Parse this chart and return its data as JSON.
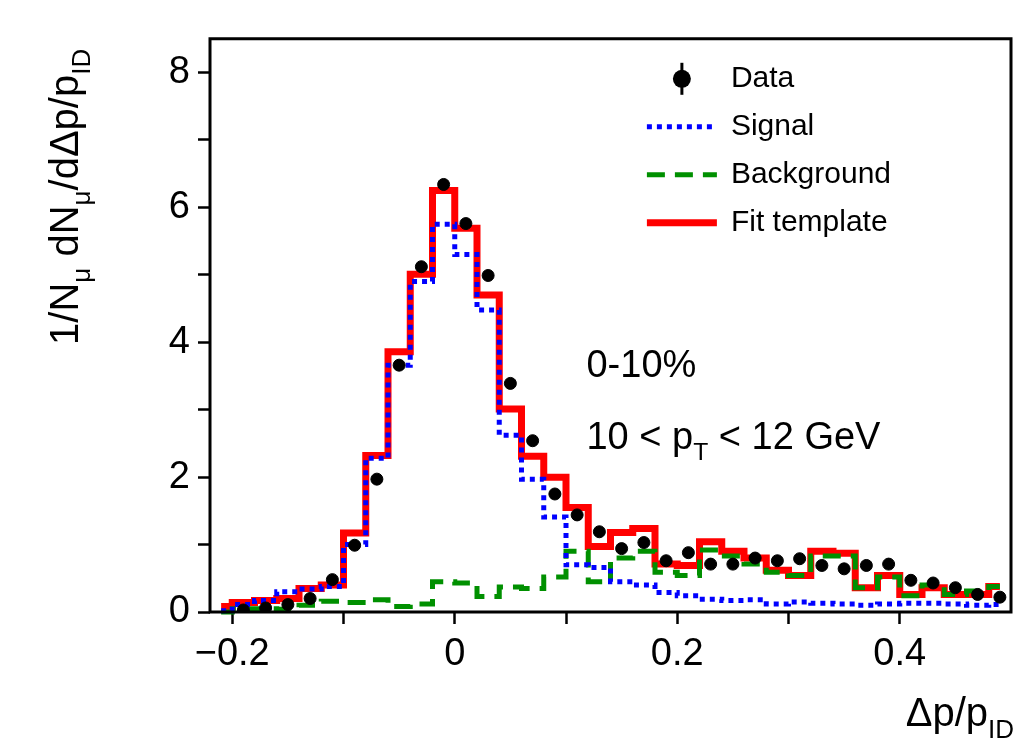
{
  "chart_data": {
    "type": "step",
    "xlabel": "Δp/p$_{ID}$",
    "ylabel": "1/N$_{μ}$ dN$_{μ}$/dΔp/p$_{ID}$",
    "annotations": [
      "0-10%",
      "10 < p$_{T}$ < 12 GeV"
    ],
    "x": [
      -0.21,
      -0.19,
      -0.17,
      -0.15,
      -0.13,
      -0.11,
      -0.09,
      -0.07,
      -0.05,
      -0.03,
      -0.01,
      0.01,
      0.03,
      0.05,
      0.07,
      0.09,
      0.11,
      0.13,
      0.15,
      0.17,
      0.19,
      0.21,
      0.23,
      0.25,
      0.27,
      0.29,
      0.31,
      0.33,
      0.35,
      0.37,
      0.39,
      0.41,
      0.43,
      0.45,
      0.47,
      0.49
    ],
    "series": [
      {
        "name": "Data",
        "type": "scatter",
        "marker": "circle",
        "color": "#000000",
        "values": [
          null,
          0.03,
          0.06,
          0.11,
          0.2,
          0.48,
          0.99,
          1.97,
          3.66,
          5.12,
          6.34,
          5.76,
          4.99,
          3.39,
          2.54,
          1.75,
          1.44,
          1.19,
          0.94,
          1.03,
          0.76,
          0.88,
          0.71,
          0.71,
          0.8,
          0.76,
          0.79,
          0.69,
          0.64,
          0.69,
          0.71,
          0.47,
          0.43,
          0.36,
          0.26,
          0.22
        ]
      },
      {
        "name": "Signal",
        "line_style": "dotted",
        "color": "#0000ff",
        "values": [
          0.02,
          0.11,
          0.17,
          0.3,
          0.34,
          0.38,
          1.0,
          2.28,
          3.66,
          4.9,
          5.75,
          5.3,
          4.48,
          2.62,
          1.97,
          1.41,
          0.7,
          0.66,
          0.45,
          0.4,
          0.29,
          0.24,
          0.19,
          0.17,
          0.18,
          0.12,
          0.15,
          0.13,
          0.12,
          0.1,
          0.12,
          0.13,
          0.13,
          0.12,
          0.1,
          0.11
        ]
      },
      {
        "name": "Background",
        "line_style": "dashed",
        "color": "#009000",
        "values": [
          0.0,
          0.05,
          0.05,
          0.04,
          0.1,
          0.16,
          0.14,
          0.18,
          0.08,
          0.12,
          0.45,
          0.43,
          0.23,
          0.37,
          0.35,
          0.52,
          0.9,
          0.45,
          0.8,
          0.9,
          0.59,
          0.54,
          0.92,
          0.83,
          0.71,
          0.59,
          0.54,
          0.83,
          0.83,
          0.36,
          0.52,
          0.24,
          0.4,
          0.26,
          0.31,
          0.38
        ]
      },
      {
        "name": "Fit template",
        "line_style": "solid",
        "color": "#ff0000",
        "values": [
          0.08,
          0.14,
          0.17,
          0.2,
          0.35,
          0.4,
          1.17,
          2.32,
          3.86,
          5.01,
          6.25,
          5.69,
          4.7,
          3.01,
          2.31,
          2.0,
          1.55,
          0.97,
          1.18,
          1.24,
          0.71,
          0.69,
          1.04,
          0.9,
          0.8,
          0.62,
          0.54,
          0.9,
          0.87,
          0.36,
          0.54,
          0.26,
          0.36,
          0.26,
          0.26,
          0.38
        ]
      }
    ],
    "xlim": [
      -0.22,
      0.5
    ],
    "ylim": [
      0,
      8.5
    ],
    "xticks": [
      {
        "value": -0.2,
        "label": "−0.2"
      },
      {
        "value": -0.1,
        "label": null
      },
      0,
      {
        "value": 0.1,
        "label": null
      },
      0.2,
      {
        "value": 0.3,
        "label": null
      },
      0.4
    ],
    "yticks": [
      0,
      {
        "value": 1,
        "label": null
      },
      2,
      {
        "value": 3,
        "label": null
      },
      4,
      {
        "value": 5,
        "label": null
      },
      6,
      {
        "value": 7,
        "label": null
      },
      8
    ],
    "grid": false,
    "legend": "top right"
  }
}
